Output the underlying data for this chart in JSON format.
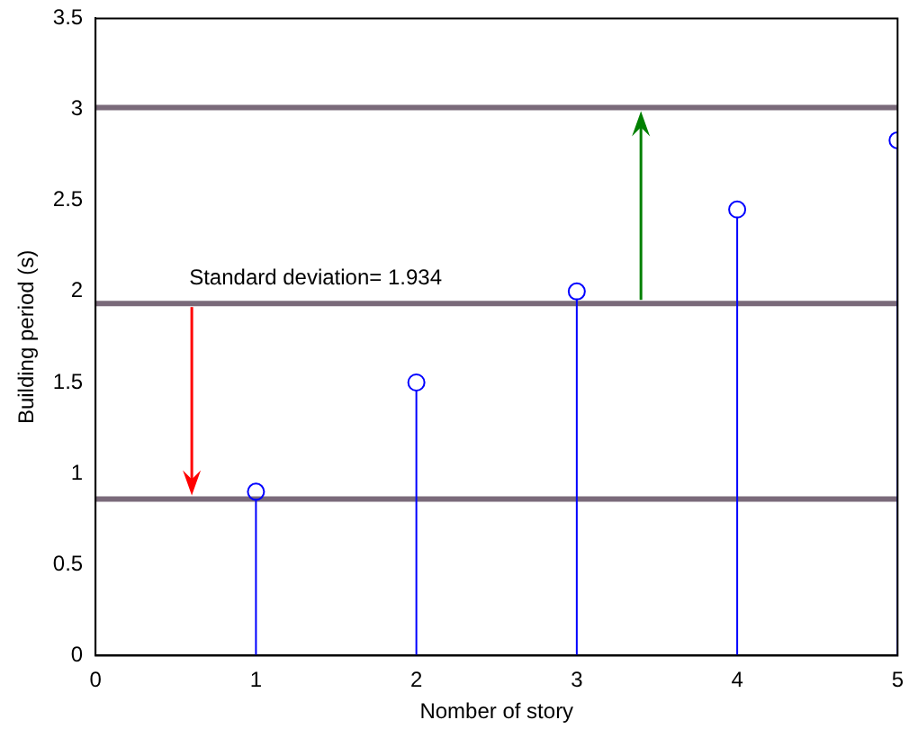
{
  "chart_data": {
    "type": "lollipop",
    "xlabel": "Nomber of story",
    "ylabel": "Building period (s)",
    "x": [
      1,
      2,
      3,
      4,
      5
    ],
    "values": [
      0.9,
      1.5,
      2.0,
      2.45,
      2.83
    ],
    "color": "#0000ff",
    "marker": "circle",
    "xlim": [
      0,
      5
    ],
    "xticks": [
      0,
      1,
      2,
      3,
      4,
      5
    ],
    "ylim": [
      0,
      3.5
    ],
    "yticks": [
      0,
      0.5,
      1,
      1.5,
      2,
      2.5,
      3,
      3.5
    ],
    "grid": false,
    "legend": false,
    "ref_lines": [
      {
        "axis": "y",
        "value": 0.86,
        "color": "#7a6a7a"
      },
      {
        "axis": "y",
        "value": 1.934,
        "color": "#7a6a7a",
        "label": "Standard deviation= 1.934"
      },
      {
        "axis": "y",
        "value": 3.01,
        "color": "#7a6a7a"
      }
    ]
  }
}
